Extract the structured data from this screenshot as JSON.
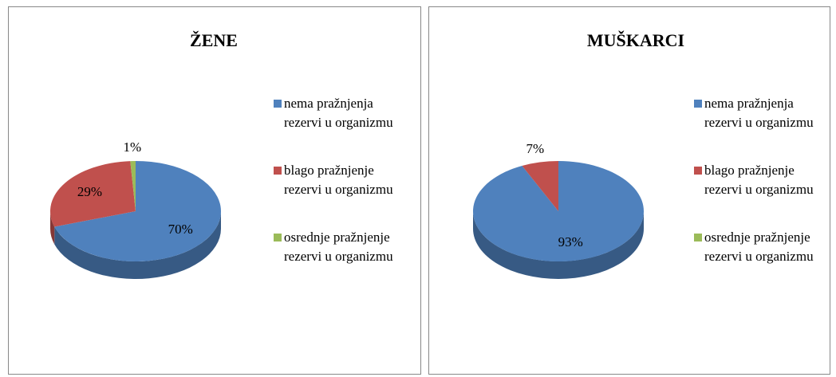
{
  "chart_data": [
    {
      "type": "pie",
      "title": "ŽENE",
      "categories": [
        "nema pražnjenja rezervi u organizmu",
        "blago pražnjenje rezervi u organizmu",
        "osrednje pražnjenje rezervi u organizmu"
      ],
      "values": [
        70,
        29,
        1
      ],
      "value_labels": [
        "70%",
        "29%",
        "1%"
      ],
      "colors": [
        "#4f81bd",
        "#c0504d",
        "#9bbb59"
      ],
      "legend": "right"
    },
    {
      "type": "pie",
      "title": "MUŠKARCI",
      "categories": [
        "nema pražnjenja rezervi u organizmu",
        "blago pražnjenje rezervi u organizmu",
        "osrednje pražnjenje rezervi u organizmu"
      ],
      "values": [
        93,
        7,
        0
      ],
      "value_labels": [
        "93%",
        "7%",
        null
      ],
      "colors": [
        "#4f81bd",
        "#c0504d",
        "#9bbb59"
      ],
      "legend": "right"
    }
  ]
}
